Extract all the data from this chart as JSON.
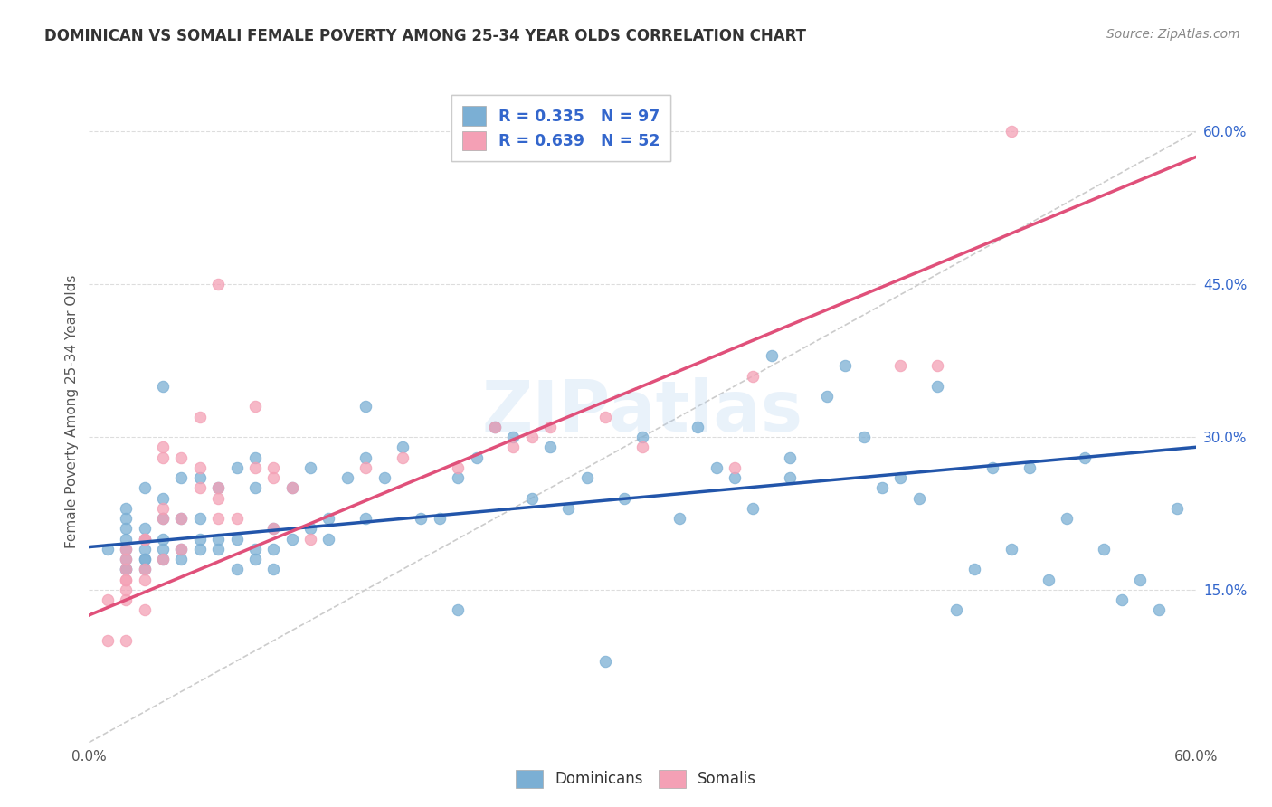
{
  "title": "DOMINICAN VS SOMALI FEMALE POVERTY AMONG 25-34 YEAR OLDS CORRELATION CHART",
  "source": "Source: ZipAtlas.com",
  "ylabel": "Female Poverty Among 25-34 Year Olds",
  "xlim": [
    0.0,
    0.6
  ],
  "ylim": [
    0.0,
    0.65
  ],
  "xtick_positions": [
    0.0,
    0.6
  ],
  "xtick_labels": [
    "0.0%",
    "60.0%"
  ],
  "yticks_right": [
    0.15,
    0.3,
    0.45,
    0.6
  ],
  "ytick_labels_right": [
    "15.0%",
    "30.0%",
    "45.0%",
    "60.0%"
  ],
  "dominicans_color": "#7bafd4",
  "somalis_color": "#f4a0b5",
  "trendline_dominicans_color": "#2255aa",
  "trendline_somalis_color": "#e0507a",
  "diagonal_color": "#cccccc",
  "legend_text_color": "#3366cc",
  "background_color": "#ffffff",
  "watermark": "ZIPatlas",
  "trendline_dom_x0": 0.0,
  "trendline_dom_y0": 0.192,
  "trendline_dom_x1": 0.6,
  "trendline_dom_y1": 0.29,
  "trendline_som_x0": 0.0,
  "trendline_som_y0": 0.125,
  "trendline_som_x1": 0.6,
  "trendline_som_y1": 0.575,
  "dominicans_x": [
    0.01,
    0.02,
    0.02,
    0.02,
    0.02,
    0.02,
    0.02,
    0.02,
    0.02,
    0.03,
    0.03,
    0.03,
    0.03,
    0.03,
    0.03,
    0.03,
    0.04,
    0.04,
    0.04,
    0.04,
    0.04,
    0.04,
    0.05,
    0.05,
    0.05,
    0.05,
    0.06,
    0.06,
    0.06,
    0.06,
    0.07,
    0.07,
    0.07,
    0.08,
    0.08,
    0.08,
    0.09,
    0.09,
    0.09,
    0.09,
    0.1,
    0.1,
    0.1,
    0.11,
    0.11,
    0.12,
    0.12,
    0.13,
    0.13,
    0.14,
    0.15,
    0.15,
    0.15,
    0.16,
    0.17,
    0.18,
    0.19,
    0.2,
    0.2,
    0.21,
    0.22,
    0.23,
    0.24,
    0.25,
    0.26,
    0.27,
    0.28,
    0.29,
    0.3,
    0.32,
    0.33,
    0.34,
    0.35,
    0.36,
    0.37,
    0.38,
    0.38,
    0.4,
    0.41,
    0.42,
    0.43,
    0.44,
    0.45,
    0.46,
    0.47,
    0.48,
    0.49,
    0.5,
    0.51,
    0.52,
    0.53,
    0.54,
    0.55,
    0.56,
    0.57,
    0.58,
    0.59
  ],
  "dominicans_y": [
    0.19,
    0.17,
    0.17,
    0.18,
    0.19,
    0.2,
    0.21,
    0.22,
    0.23,
    0.17,
    0.18,
    0.18,
    0.19,
    0.2,
    0.21,
    0.25,
    0.18,
    0.19,
    0.2,
    0.22,
    0.24,
    0.35,
    0.18,
    0.19,
    0.22,
    0.26,
    0.19,
    0.2,
    0.22,
    0.26,
    0.19,
    0.2,
    0.25,
    0.17,
    0.2,
    0.27,
    0.18,
    0.19,
    0.25,
    0.28,
    0.17,
    0.19,
    0.21,
    0.2,
    0.25,
    0.21,
    0.27,
    0.2,
    0.22,
    0.26,
    0.28,
    0.33,
    0.22,
    0.26,
    0.29,
    0.22,
    0.22,
    0.26,
    0.13,
    0.28,
    0.31,
    0.3,
    0.24,
    0.29,
    0.23,
    0.26,
    0.08,
    0.24,
    0.3,
    0.22,
    0.31,
    0.27,
    0.26,
    0.23,
    0.38,
    0.28,
    0.26,
    0.34,
    0.37,
    0.3,
    0.25,
    0.26,
    0.24,
    0.35,
    0.13,
    0.17,
    0.27,
    0.19,
    0.27,
    0.16,
    0.22,
    0.28,
    0.19,
    0.14,
    0.16,
    0.13,
    0.23
  ],
  "somalis_x": [
    0.01,
    0.01,
    0.02,
    0.02,
    0.02,
    0.02,
    0.02,
    0.02,
    0.02,
    0.02,
    0.03,
    0.03,
    0.03,
    0.03,
    0.03,
    0.04,
    0.04,
    0.04,
    0.04,
    0.04,
    0.05,
    0.05,
    0.05,
    0.06,
    0.06,
    0.06,
    0.07,
    0.07,
    0.07,
    0.07,
    0.08,
    0.09,
    0.09,
    0.1,
    0.1,
    0.1,
    0.11,
    0.12,
    0.15,
    0.17,
    0.2,
    0.22,
    0.23,
    0.24,
    0.25,
    0.28,
    0.3,
    0.35,
    0.36,
    0.44,
    0.46,
    0.5
  ],
  "somalis_y": [
    0.1,
    0.14,
    0.1,
    0.14,
    0.15,
    0.16,
    0.16,
    0.17,
    0.18,
    0.19,
    0.13,
    0.16,
    0.17,
    0.2,
    0.2,
    0.18,
    0.22,
    0.23,
    0.28,
    0.29,
    0.19,
    0.22,
    0.28,
    0.25,
    0.27,
    0.32,
    0.22,
    0.24,
    0.25,
    0.45,
    0.22,
    0.27,
    0.33,
    0.21,
    0.26,
    0.27,
    0.25,
    0.2,
    0.27,
    0.28,
    0.27,
    0.31,
    0.29,
    0.3,
    0.31,
    0.32,
    0.29,
    0.27,
    0.36,
    0.37,
    0.37,
    0.6
  ]
}
